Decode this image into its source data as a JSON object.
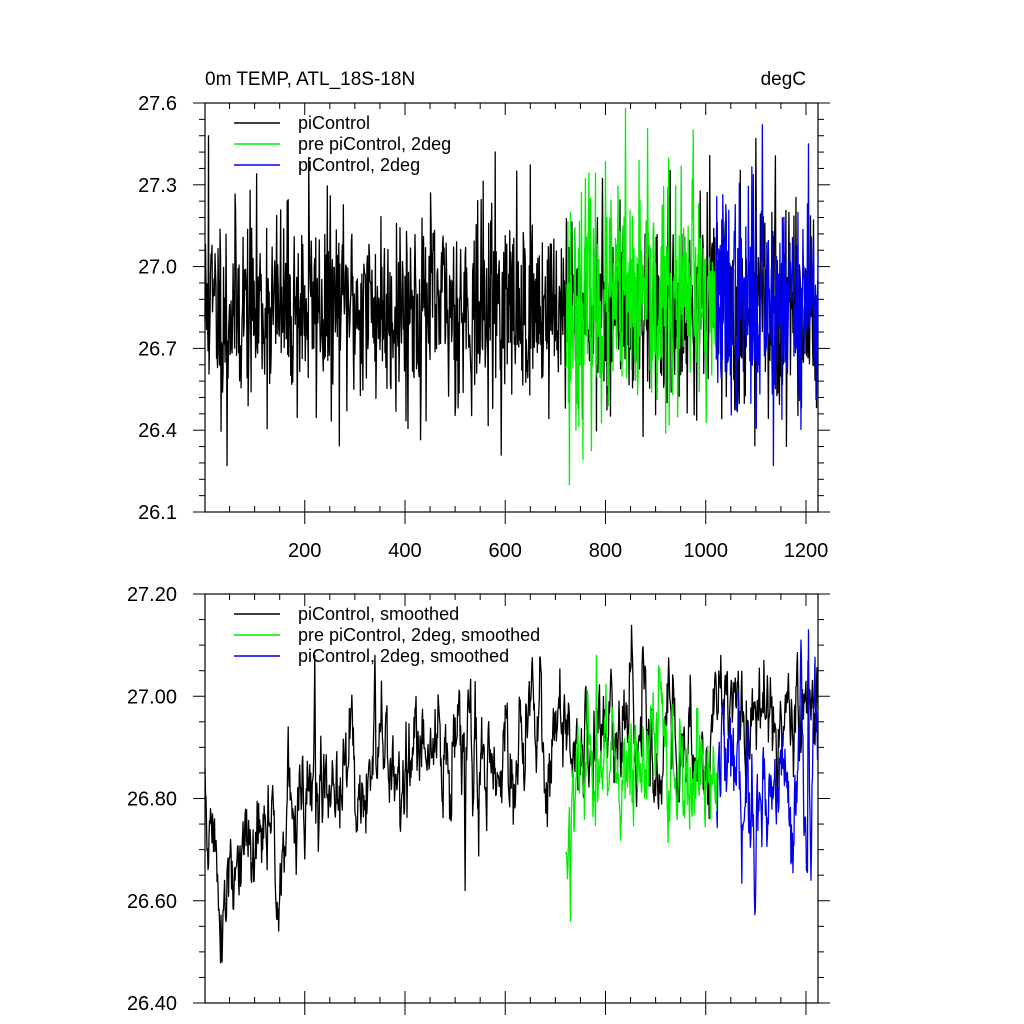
{
  "header": {
    "title_left": "0m TEMP, ATL_18S-18N",
    "title_right": "degC"
  },
  "chart_data": [
    {
      "type": "line",
      "xlim": [
        1,
        1224
      ],
      "ylim": [
        26.1,
        27.6
      ],
      "x_ticks": [
        200,
        400,
        600,
        800,
        1000,
        1200
      ],
      "x_tick_labels": [
        "200",
        "400",
        "600",
        "800",
        "1000",
        "1200"
      ],
      "y_ticks": [
        26.1,
        26.4,
        26.7,
        27.0,
        27.3,
        27.6
      ],
      "y_tick_labels": [
        "26.1",
        "26.4",
        "26.7",
        "27.0",
        "27.3",
        "27.6"
      ],
      "grid": false,
      "legend_position": "top-left",
      "series": [
        {
          "name": "piControl",
          "color": "#000000",
          "x_range": [
            1,
            1224
          ],
          "mean": 26.85,
          "std": 0.18,
          "seed": 11,
          "peaks": [
            [
              8,
              27.48
            ],
            [
              45,
              26.27
            ],
            [
              208,
              27.4
            ],
            [
              580,
              27.42
            ],
            [
              1100,
              27.47
            ]
          ]
        },
        {
          "name": "pre piControl, 2deg",
          "color": "#00ee00",
          "x_range": [
            721,
            1024
          ],
          "mean": 26.86,
          "std": 0.21,
          "seed": 23,
          "peaks": [
            [
              728,
              26.2
            ],
            [
              840,
              27.58
            ],
            [
              975,
              27.5
            ]
          ]
        },
        {
          "name": "piControl, 2deg",
          "color": "#0000ee",
          "x_range": [
            1021,
            1224
          ],
          "mean": 26.88,
          "std": 0.2,
          "seed": 37,
          "peaks": [
            [
              1113,
              27.52
            ],
            [
              1135,
              26.27
            ],
            [
              1205,
              27.45
            ]
          ]
        }
      ]
    },
    {
      "type": "line",
      "xlim": [
        1,
        1224
      ],
      "ylim": [
        26.4,
        27.2
      ],
      "x_ticks": [
        200,
        400,
        600,
        800,
        1000,
        1200
      ],
      "x_tick_labels": [],
      "y_ticks": [
        26.4,
        26.6,
        26.8,
        27.0,
        27.2
      ],
      "y_tick_labels": [
        "26.40",
        "26.60",
        "26.80",
        "27.00",
        "27.20"
      ],
      "grid": false,
      "legend_position": "top-left",
      "series": [
        {
          "name": "piControl, smoothed",
          "color": "#000000",
          "x_range": [
            1,
            1224
          ],
          "mean": 26.88,
          "std": 0.07,
          "seed": 51,
          "trend": [
            [
              1,
              26.8
            ],
            [
              40,
              26.58
            ],
            [
              120,
              26.72
            ],
            [
              300,
              26.85
            ],
            [
              700,
              26.92
            ],
            [
              1000,
              26.93
            ],
            [
              1224,
              27.0
            ]
          ],
          "peaks": [
            [
              35,
              26.48
            ],
            [
              220,
              27.08
            ],
            [
              340,
              27.08
            ],
            [
              520,
              26.62
            ]
          ]
        },
        {
          "name": "pre piControl, 2deg, smoothed",
          "color": "#00ee00",
          "x_range": [
            721,
            1024
          ],
          "mean": 26.87,
          "std": 0.07,
          "seed": 63,
          "trend": [
            [
              721,
              26.62
            ],
            [
              745,
              26.78
            ],
            [
              780,
              26.9
            ],
            [
              1024,
              26.86
            ]
          ],
          "peaks": [
            [
              730,
              26.56
            ],
            [
              782,
              27.08
            ]
          ]
        },
        {
          "name": "piControl, 2deg, smoothed",
          "color": "#0000ee",
          "x_range": [
            1021,
            1224
          ],
          "mean": 26.88,
          "std": 0.08,
          "seed": 79,
          "trend": [
            [
              1021,
              26.85
            ],
            [
              1224,
              26.82
            ]
          ],
          "peaks": [
            [
              1190,
              27.11
            ],
            [
              1205,
              27.13
            ],
            [
              1210,
              26.64
            ]
          ]
        }
      ]
    }
  ]
}
